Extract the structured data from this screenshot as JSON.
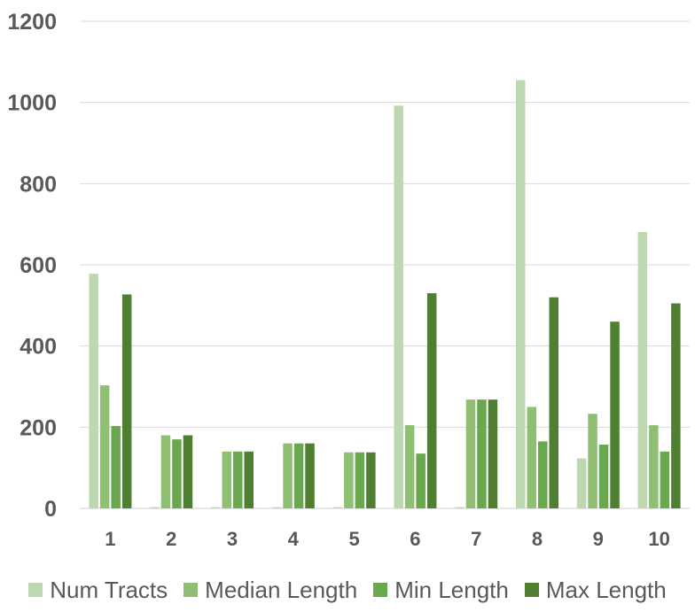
{
  "chart_data": {
    "type": "bar",
    "categories": [
      "1",
      "2",
      "3",
      "4",
      "5",
      "6",
      "7",
      "8",
      "9",
      "10"
    ],
    "series": [
      {
        "name": "Num Tracts",
        "color": "#bdd7b0",
        "values": [
          578,
          3,
          3,
          3,
          3,
          992,
          3,
          1055,
          123,
          681
        ]
      },
      {
        "name": "Median Length",
        "color": "#8fbf72",
        "values": [
          303,
          180,
          140,
          160,
          138,
          205,
          268,
          250,
          233,
          205
        ]
      },
      {
        "name": "Min Length",
        "color": "#6aa84f",
        "values": [
          203,
          170,
          140,
          160,
          138,
          135,
          268,
          165,
          157,
          140
        ]
      },
      {
        "name": "Max Length",
        "color": "#4f7f31",
        "values": [
          527,
          180,
          140,
          160,
          138,
          530,
          268,
          520,
          460,
          505
        ]
      }
    ],
    "yticks": [
      "0",
      "200",
      "400",
      "600",
      "800",
      "1000",
      "1200"
    ],
    "ylim": [
      0,
      1200
    ],
    "grid": true,
    "legend_position": "bottom"
  }
}
